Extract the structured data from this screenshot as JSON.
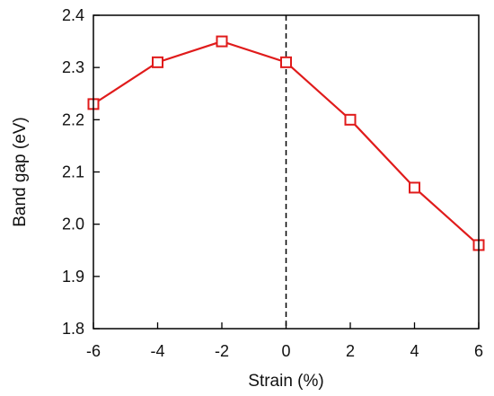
{
  "chart_data": {
    "type": "line",
    "title": "",
    "xlabel": "Strain (%)",
    "ylabel": "Band gap (eV)",
    "xlim": [
      -6,
      6
    ],
    "ylim": [
      1.8,
      2.4
    ],
    "x_ticks": [
      -6,
      -4,
      -2,
      0,
      2,
      4,
      6
    ],
    "y_ticks": [
      1.8,
      1.9,
      2.0,
      2.1,
      2.2,
      2.3,
      2.4
    ],
    "x_tick_labels": [
      "-6",
      "-4",
      "-2",
      "0",
      "2",
      "4",
      "6"
    ],
    "y_tick_labels": [
      "1.8",
      "1.9",
      "2.0",
      "2.1",
      "2.2",
      "2.3",
      "2.4"
    ],
    "grid": false,
    "reference_line": {
      "axis": "x",
      "value": 0,
      "style": "dashed",
      "color": "#000000"
    },
    "series": [
      {
        "marker": "open-square",
        "color": "#e01b1b",
        "x": [
          -6,
          -4,
          -2,
          0,
          2,
          4,
          6
        ],
        "y": [
          2.23,
          2.31,
          2.35,
          2.31,
          2.2,
          2.07,
          1.96
        ]
      }
    ]
  }
}
